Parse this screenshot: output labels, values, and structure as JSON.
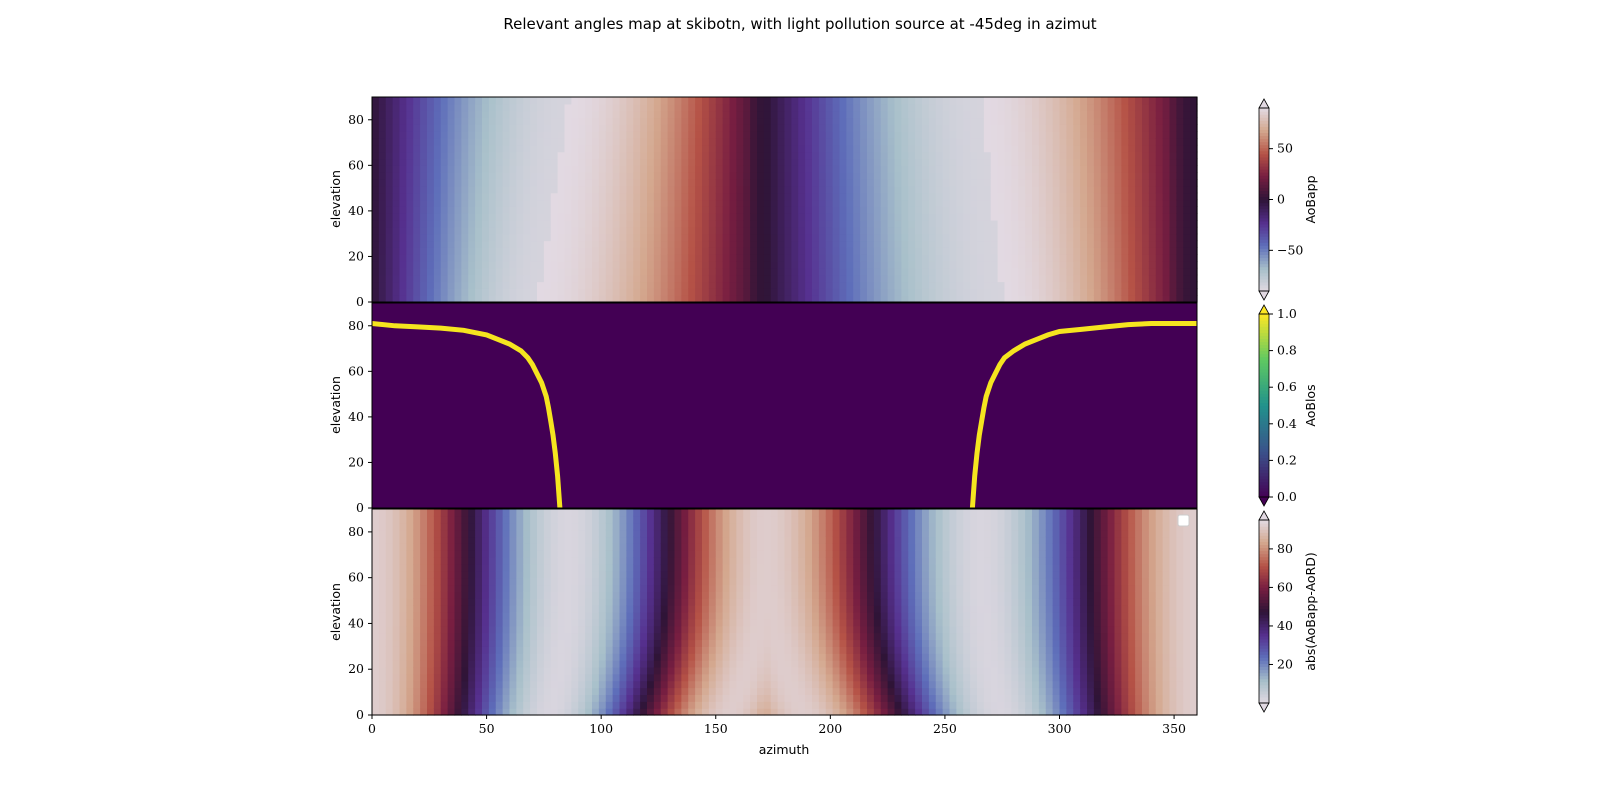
{
  "chart_data": {
    "type": "heatmap",
    "title": "Relevant angles map at skibotn, with light pollution source at -45deg in azimut",
    "xlabel": "azimuth",
    "xlim": [
      0,
      360
    ],
    "x_ticks": [
      0,
      50,
      100,
      150,
      200,
      250,
      300,
      350
    ],
    "colors": {
      "line": "#f5e51f",
      "background": "#430054"
    },
    "panels": [
      {
        "name": "aobapp-panel",
        "ylabel": "elevation",
        "ylim": [
          0,
          90
        ],
        "y_ticks": [
          0,
          20,
          40,
          60,
          80
        ],
        "colormap": "twilight",
        "colorbar": {
          "label": "AoBapp",
          "ticks": [
            -50,
            0,
            50
          ],
          "tick_labels": [
            "−50",
            "0",
            "50"
          ],
          "range": [
            -90,
            90
          ]
        },
        "field": "AoBapp: signed angle, ~0 (dark) near azimuth 0/172/360, ~-80 (white, left lobes) around azimuth 80 and 260, ~+80 (warm) in between"
      },
      {
        "name": "aoblos-panel",
        "ylabel": "elevation",
        "ylim": [
          0,
          90
        ],
        "y_ticks": [
          0,
          20,
          40,
          60,
          80
        ],
        "colormap": "viridis",
        "colorbar": {
          "label": "AoBlos",
          "ticks": [
            0.0,
            0.2,
            0.4,
            0.6,
            0.8,
            1.0
          ],
          "tick_labels": [
            "0.0",
            "0.2",
            "0.4",
            "0.6",
            "0.8",
            "1.0"
          ],
          "range": [
            0,
            1
          ]
        },
        "curves": [
          {
            "azimuth": [
              0,
              10,
              20,
              30,
              40,
              50,
              55,
              60,
              65,
              68,
              70,
              72,
              74,
              76,
              77,
              78,
              79,
              80,
              81,
              82
            ],
            "elevation": [
              81,
              80,
              79.5,
              79,
              78,
              76,
              74,
              72,
              69,
              66,
              63,
              59,
              55,
              49,
              44,
              38,
              32,
              24,
              14,
              0
            ]
          },
          {
            "azimuth": [
              262,
              263,
              264,
              265,
              266,
              267,
              268,
              270,
              272,
              274,
              276,
              280,
              285,
              290,
              295,
              300,
              310,
              320,
              330,
              340,
              360
            ],
            "elevation": [
              0,
              14,
              24,
              32,
              38,
              44,
              49,
              55,
              59,
              63,
              66,
              69,
              72,
              74,
              76,
              77.5,
              78.5,
              79.5,
              80.5,
              81,
              81
            ]
          }
        ]
      },
      {
        "name": "abs-diff-panel",
        "ylabel": "elevation",
        "ylim": [
          0,
          90
        ],
        "y_ticks": [
          0,
          20,
          40,
          60,
          80
        ],
        "colormap": "twilight",
        "colorbar": {
          "label": "abs(AoBapp-AoRD)",
          "ticks": [
            20,
            40,
            60,
            80
          ],
          "tick_labels": [
            "20",
            "40",
            "60",
            "80"
          ],
          "range": [
            0,
            95
          ]
        },
        "field": "abs(AoBapp-AoRD): alternating bands, white ridges near azimuth 0, 98, 172, 258, 360; dark bands near azimuth 32, 132, 200, 315, bending toward centre at low elevation"
      }
    ],
    "legend": "empty legend box top-right of bottom panel"
  }
}
